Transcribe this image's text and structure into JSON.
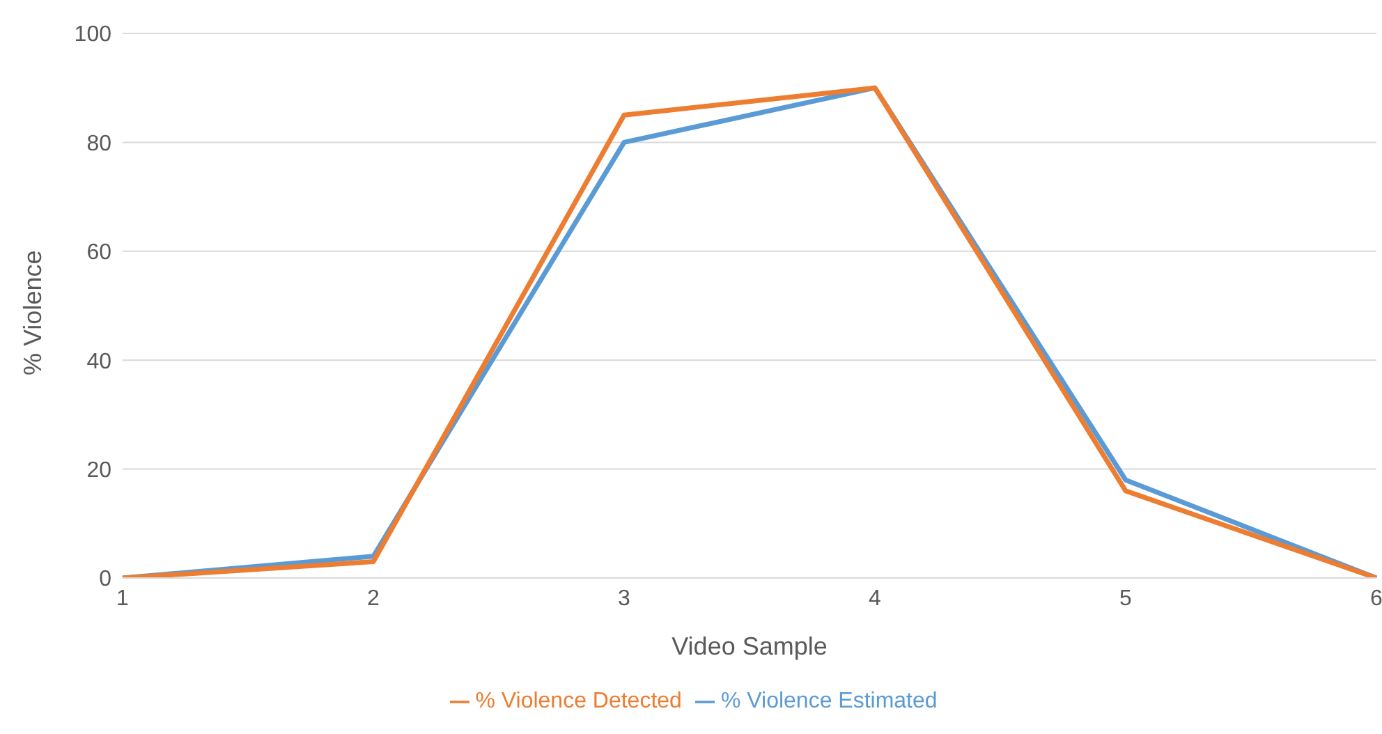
{
  "chart_data": {
    "type": "line",
    "xlabel": "Video Sample",
    "ylabel": "% Violence",
    "categories": [
      "1",
      "2",
      "3",
      "4",
      "5",
      "6"
    ],
    "series": [
      {
        "name": "% Violence Estimated",
        "color": "#5b9bd5",
        "values": [
          0,
          4,
          80,
          90,
          18,
          0
        ]
      },
      {
        "name": "% Violence Detected",
        "color": "#ed7d31",
        "values": [
          0,
          3,
          85,
          90,
          16,
          0
        ]
      }
    ],
    "ylim": [
      0,
      100
    ],
    "yticks": [
      0,
      20,
      40,
      60,
      80,
      100
    ],
    "grid": "y",
    "legend": "bottom",
    "marker": "none",
    "line_style": "solid"
  }
}
